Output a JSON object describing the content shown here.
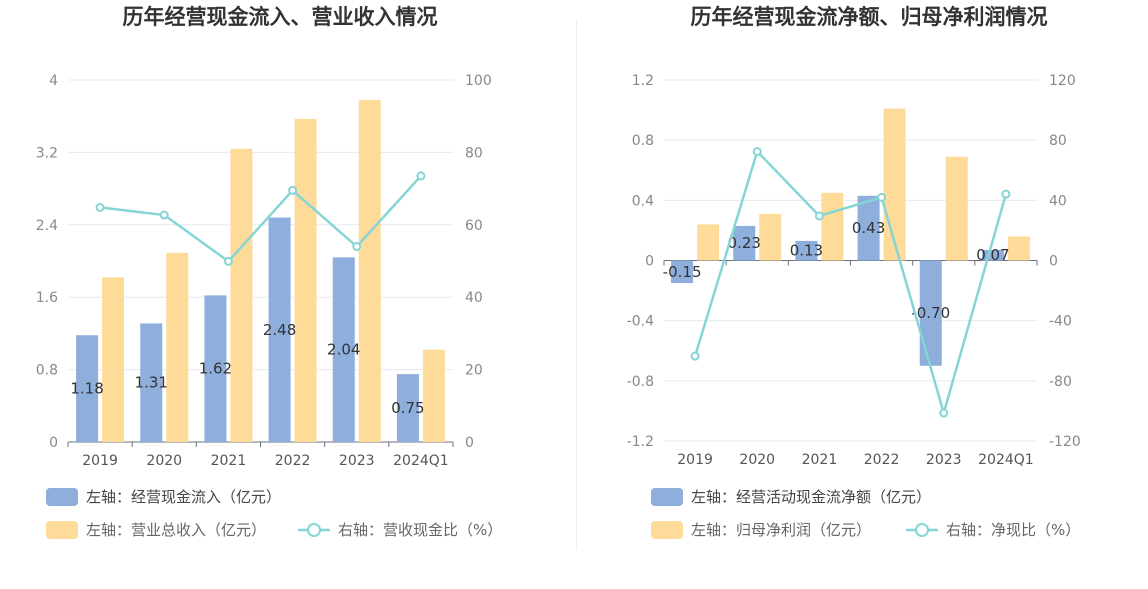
{
  "colors": {
    "bar1": "#8eaedc",
    "bar2": "#ffdb9a",
    "line": "#85d5d6",
    "grid": "#e6e9f2",
    "axis": "#6e7079"
  },
  "chart_data": [
    {
      "type": "bar",
      "title": "历年经营现金流入、营业收入情况",
      "categories": [
        "2019",
        "2020",
        "2021",
        "2022",
        "2023",
        "2024Q1"
      ],
      "yleft": {
        "ticks": [
          "0",
          "0.8",
          "1.6",
          "2.4",
          "3.2",
          "4"
        ],
        "min": 0,
        "max": 4
      },
      "yright": {
        "ticks": [
          "0",
          "20",
          "40",
          "60",
          "80",
          "100"
        ],
        "min": 0,
        "max": 100
      },
      "series": [
        {
          "name": "左轴：经营现金流入（亿元）",
          "type": "bar",
          "axis": "left",
          "values": [
            1.18,
            1.31,
            1.62,
            2.48,
            2.04,
            0.75
          ],
          "labels": [
            "1.18",
            "1.31",
            "1.62",
            "2.48",
            "2.04",
            "0.75"
          ]
        },
        {
          "name": "左轴：营业总收入（亿元）",
          "type": "bar",
          "axis": "left",
          "values": [
            1.82,
            2.09,
            3.24,
            3.57,
            3.78,
            1.02
          ]
        },
        {
          "name": "右轴：营收现金比（%）",
          "type": "line",
          "axis": "right",
          "values": [
            64.8,
            62.7,
            49.9,
            69.5,
            54.0,
            73.5
          ]
        }
      ]
    },
    {
      "type": "bar",
      "title": "历年经营现金流净额、归母净利润情况",
      "categories": [
        "2019",
        "2020",
        "2021",
        "2022",
        "2023",
        "2024Q1"
      ],
      "yleft": {
        "ticks": [
          "-1.2",
          "-0.8",
          "-0.4",
          "0",
          "0.4",
          "0.8",
          "1.2"
        ],
        "min": -1.2,
        "max": 1.2
      },
      "yright": {
        "ticks": [
          "-120",
          "-80",
          "-40",
          "0",
          "40",
          "80",
          "120"
        ],
        "min": -120,
        "max": 120
      },
      "series": [
        {
          "name": "左轴：经营活动现金流净额（亿元）",
          "type": "bar",
          "axis": "left",
          "values": [
            -0.15,
            0.23,
            0.13,
            0.43,
            -0.7,
            0.07
          ],
          "labels": [
            "-0.15",
            "0.23",
            "0.13",
            "0.43",
            "-0.70",
            "0.07"
          ]
        },
        {
          "name": "左轴：归母净利润（亿元）",
          "type": "bar",
          "axis": "left",
          "values": [
            0.24,
            0.31,
            0.45,
            1.01,
            0.69,
            0.16
          ]
        },
        {
          "name": "右轴：净现比（%）",
          "type": "line",
          "axis": "right",
          "values": [
            -63.6,
            72.5,
            29.6,
            42.0,
            -101.4,
            44.1
          ]
        }
      ]
    }
  ]
}
